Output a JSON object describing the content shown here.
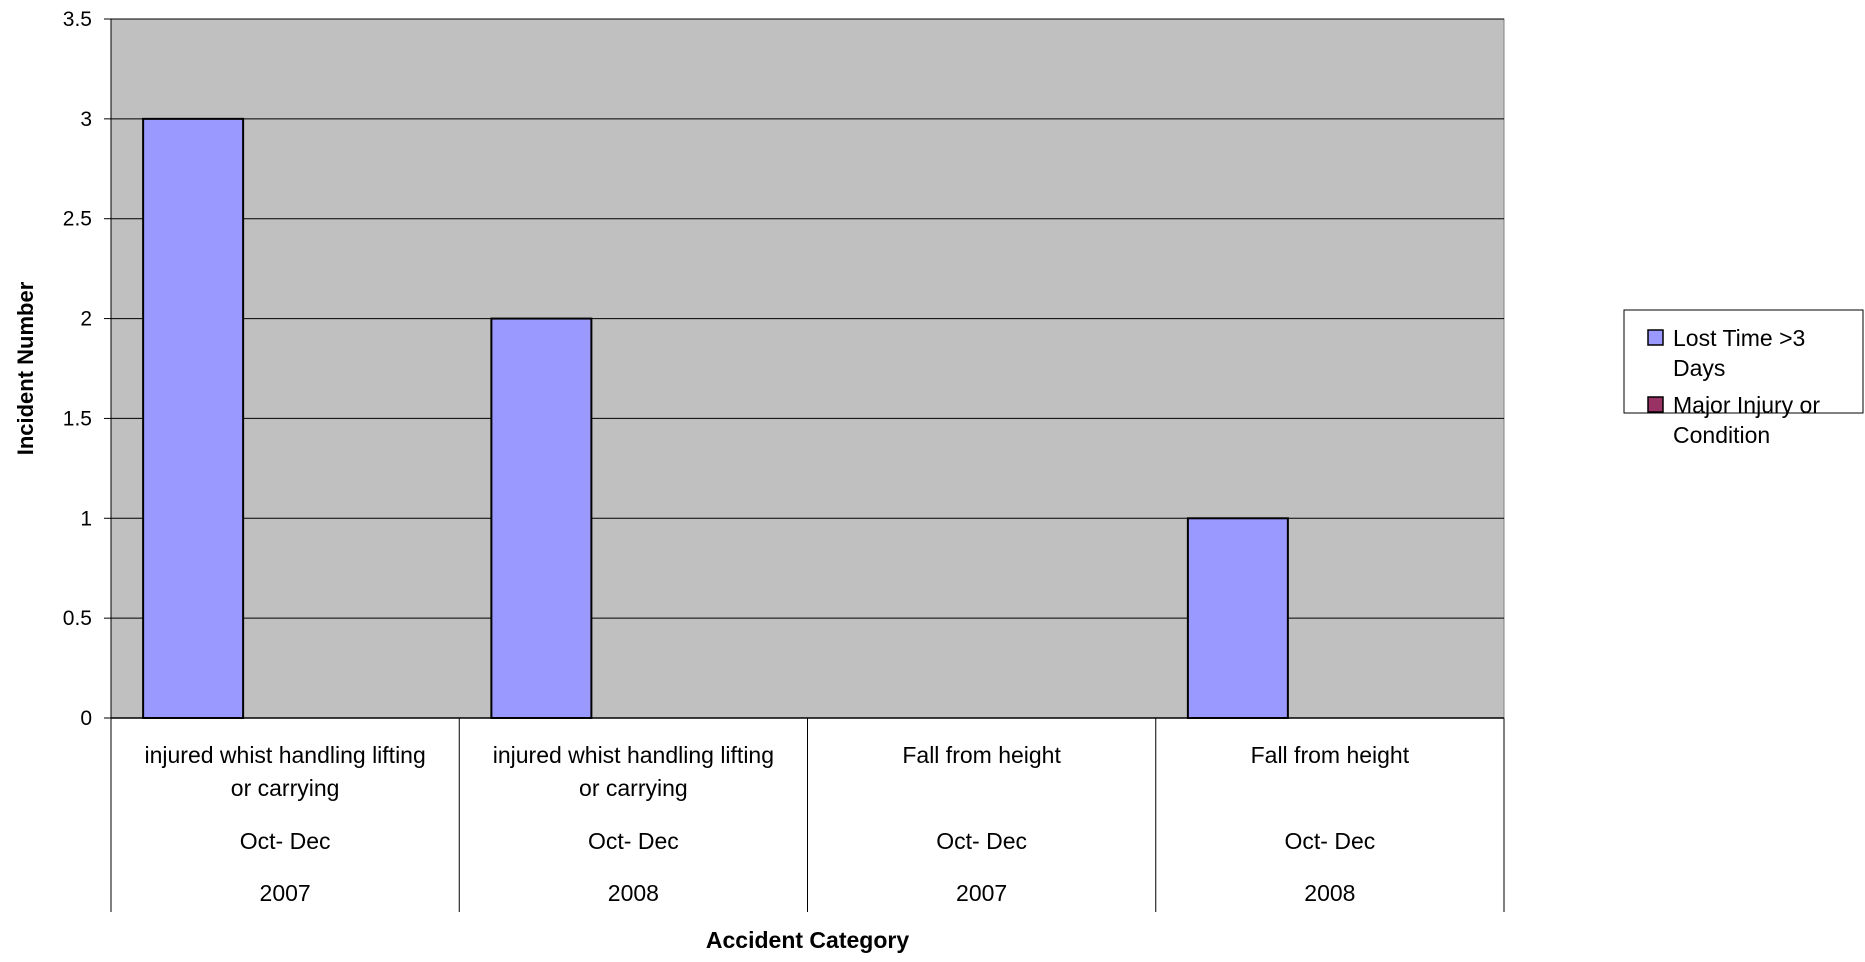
{
  "chart_data": {
    "type": "bar",
    "title": "",
    "xlabel": "Accident Category",
    "ylabel": "Incident Number",
    "ylim": [
      0,
      3.5
    ],
    "yticks": [
      "0",
      "0.5",
      "1",
      "1.5",
      "2",
      "2.5",
      "3",
      "3.5"
    ],
    "grid": true,
    "legend_position": "right",
    "plot_background": "#c0c0c0",
    "categories": [
      {
        "category_lines": [
          "injured whist handling lifting",
          "or carrying"
        ],
        "period": "Oct- Dec",
        "year": "2007"
      },
      {
        "category_lines": [
          "injured whist handling lifting",
          "or carrying"
        ],
        "period": "Oct- Dec",
        "year": "2008"
      },
      {
        "category_lines": [
          "Fall from height"
        ],
        "period": "Oct- Dec",
        "year": "2007"
      },
      {
        "category_lines": [
          "Fall from height"
        ],
        "period": "Oct- Dec",
        "year": "2008"
      }
    ],
    "series": [
      {
        "name_lines": [
          "Lost Time >3",
          "Days"
        ],
        "color": "#9999ff",
        "values": [
          3,
          2,
          0,
          1
        ]
      },
      {
        "name_lines": [
          "Major Injury or",
          "Condition"
        ],
        "color": "#993366",
        "values": [
          0,
          0,
          0,
          0
        ]
      }
    ]
  }
}
